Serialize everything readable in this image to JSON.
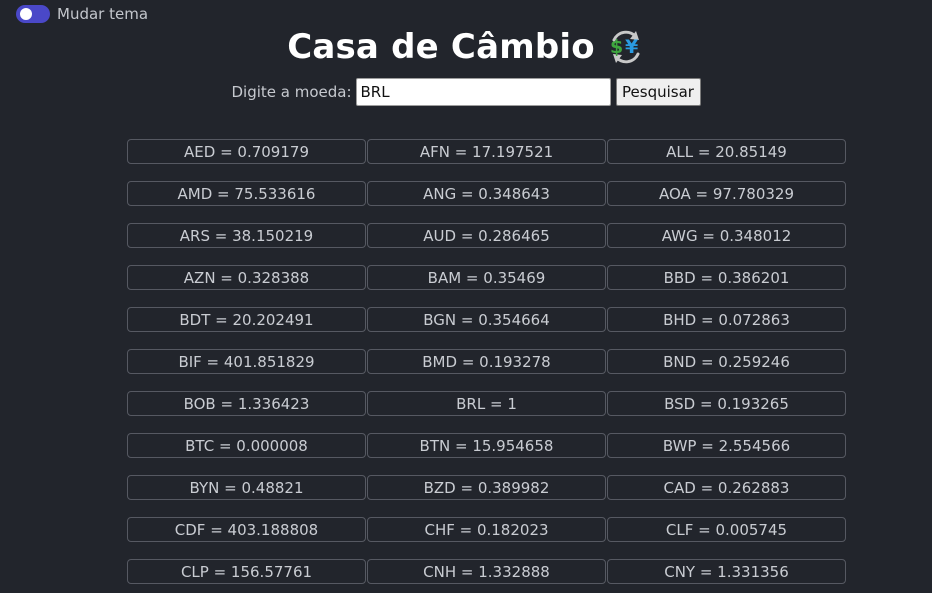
{
  "theme_toggle": {
    "label": "Mudar tema",
    "accent_color": "#4a48c8"
  },
  "header": {
    "title": "Casa de Câmbio",
    "icon": "currency-exchange-icon"
  },
  "search": {
    "label": "Digite a moeda:",
    "value": "BRL",
    "button_label": "Pesquisar"
  },
  "rates": [
    "AED = 0.709179",
    "AFN = 17.197521",
    "ALL = 20.85149",
    "AMD = 75.533616",
    "ANG = 0.348643",
    "AOA = 97.780329",
    "ARS = 38.150219",
    "AUD = 0.286465",
    "AWG = 0.348012",
    "AZN = 0.328388",
    "BAM = 0.35469",
    "BBD = 0.386201",
    "BDT = 20.202491",
    "BGN = 0.354664",
    "BHD = 0.072863",
    "BIF = 401.851829",
    "BMD = 0.193278",
    "BND = 0.259246",
    "BOB = 1.336423",
    "BRL = 1",
    "BSD = 0.193265",
    "BTC = 0.000008",
    "BTN = 15.954658",
    "BWP = 2.554566",
    "BYN = 0.48821",
    "BZD = 0.389982",
    "CAD = 0.262883",
    "CDF = 403.188808",
    "CHF = 0.182023",
    "CLF = 0.005745",
    "CLP = 156.57761",
    "CNH = 1.332888",
    "CNY = 1.331356"
  ]
}
